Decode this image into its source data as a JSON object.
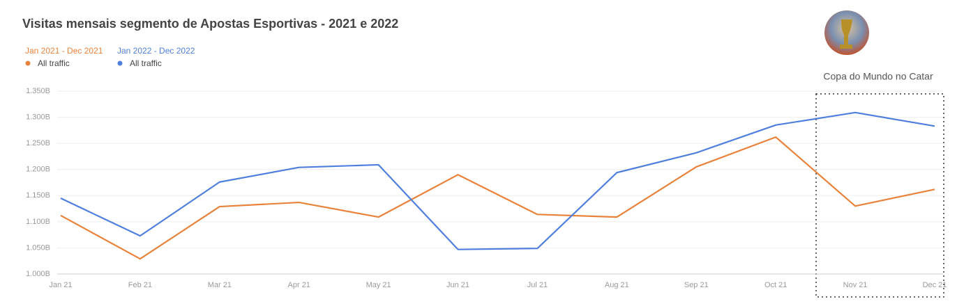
{
  "chart_data": {
    "type": "line",
    "title": "Visitas mensais segmento de Apostas Esportivas - 2021 e 2022",
    "annotation": "Copa do Mundo no Catar",
    "categories": [
      "Jan 21",
      "Feb 21",
      "Mar 21",
      "Apr 21",
      "May 21",
      "Jun 21",
      "Jul 21",
      "Aug 21",
      "Sep 21",
      "Oct 21",
      "Nov 21",
      "Dec 21"
    ],
    "series": [
      {
        "period": "Jan 2021 - Dec 2021",
        "name": "All traffic",
        "color": "#e8823a",
        "values": [
          1.112,
          1.029,
          1.129,
          1.137,
          1.109,
          1.19,
          1.114,
          1.109,
          1.205,
          1.262,
          1.13,
          1.162
        ]
      },
      {
        "period": "Jan 2022 - Dec 2022",
        "name": "All traffic",
        "color": "#4f7fdc",
        "values": [
          1.145,
          1.073,
          1.176,
          1.204,
          1.209,
          1.047,
          1.049,
          1.194,
          1.232,
          1.285,
          1.309,
          1.283
        ]
      }
    ],
    "ylim": [
      1.0,
      1.35
    ],
    "yticks": [
      {
        "value": 1.0,
        "label": "1.000B"
      },
      {
        "value": 1.05,
        "label": "1.050B"
      },
      {
        "value": 1.1,
        "label": "1.100B"
      },
      {
        "value": 1.15,
        "label": "1.150B"
      },
      {
        "value": 1.2,
        "label": "1.200B"
      },
      {
        "value": 1.25,
        "label": "1.250B"
      },
      {
        "value": 1.3,
        "label": "1.300B"
      },
      {
        "value": 1.35,
        "label": "1.350B"
      }
    ],
    "grid": true
  }
}
